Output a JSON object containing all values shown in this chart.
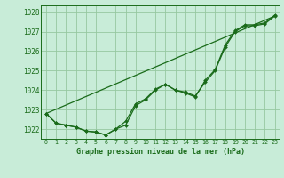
{
  "title": "Graphe pression niveau de la mer (hPa)",
  "bg_color": "#c8ecd8",
  "grid_color": "#96c8a0",
  "line_color": "#1a6b1a",
  "marker_color": "#1a6b1a",
  "xlim": [
    -0.5,
    23.5
  ],
  "ylim": [
    1021.5,
    1028.35
  ],
  "yticks": [
    1022,
    1023,
    1024,
    1025,
    1026,
    1027,
    1028
  ],
  "xticks": [
    0,
    1,
    2,
    3,
    4,
    5,
    6,
    7,
    8,
    9,
    10,
    11,
    12,
    13,
    14,
    15,
    16,
    17,
    18,
    19,
    20,
    21,
    22,
    23
  ],
  "series1_x": [
    0,
    1,
    2,
    3,
    4,
    5,
    6,
    7,
    8,
    9,
    10,
    11,
    12,
    13,
    14,
    15,
    16,
    17,
    18,
    19,
    20,
    21,
    22,
    23
  ],
  "series1_y": [
    1022.8,
    1022.3,
    1022.2,
    1022.1,
    1021.9,
    1021.85,
    1021.7,
    1022.0,
    1022.2,
    1023.2,
    1023.5,
    1024.0,
    1024.3,
    1024.0,
    1023.9,
    1023.7,
    1024.4,
    1025.0,
    1026.2,
    1027.0,
    1027.3,
    1027.3,
    1027.4,
    1027.8
  ],
  "series2_x": [
    0,
    1,
    2,
    3,
    4,
    5,
    6,
    7,
    8,
    9,
    10,
    11,
    12,
    13,
    14,
    15,
    16,
    17,
    18,
    19,
    20,
    21,
    22,
    23
  ],
  "series2_y": [
    1022.8,
    1022.3,
    1022.2,
    1022.1,
    1021.9,
    1021.85,
    1021.7,
    1022.0,
    1022.4,
    1023.3,
    1023.55,
    1024.05,
    1024.3,
    1024.0,
    1023.85,
    1023.65,
    1024.5,
    1025.05,
    1026.3,
    1027.05,
    1027.35,
    1027.35,
    1027.45,
    1027.85
  ],
  "trend_x": [
    0,
    23
  ],
  "trend_y": [
    1022.8,
    1027.8
  ]
}
